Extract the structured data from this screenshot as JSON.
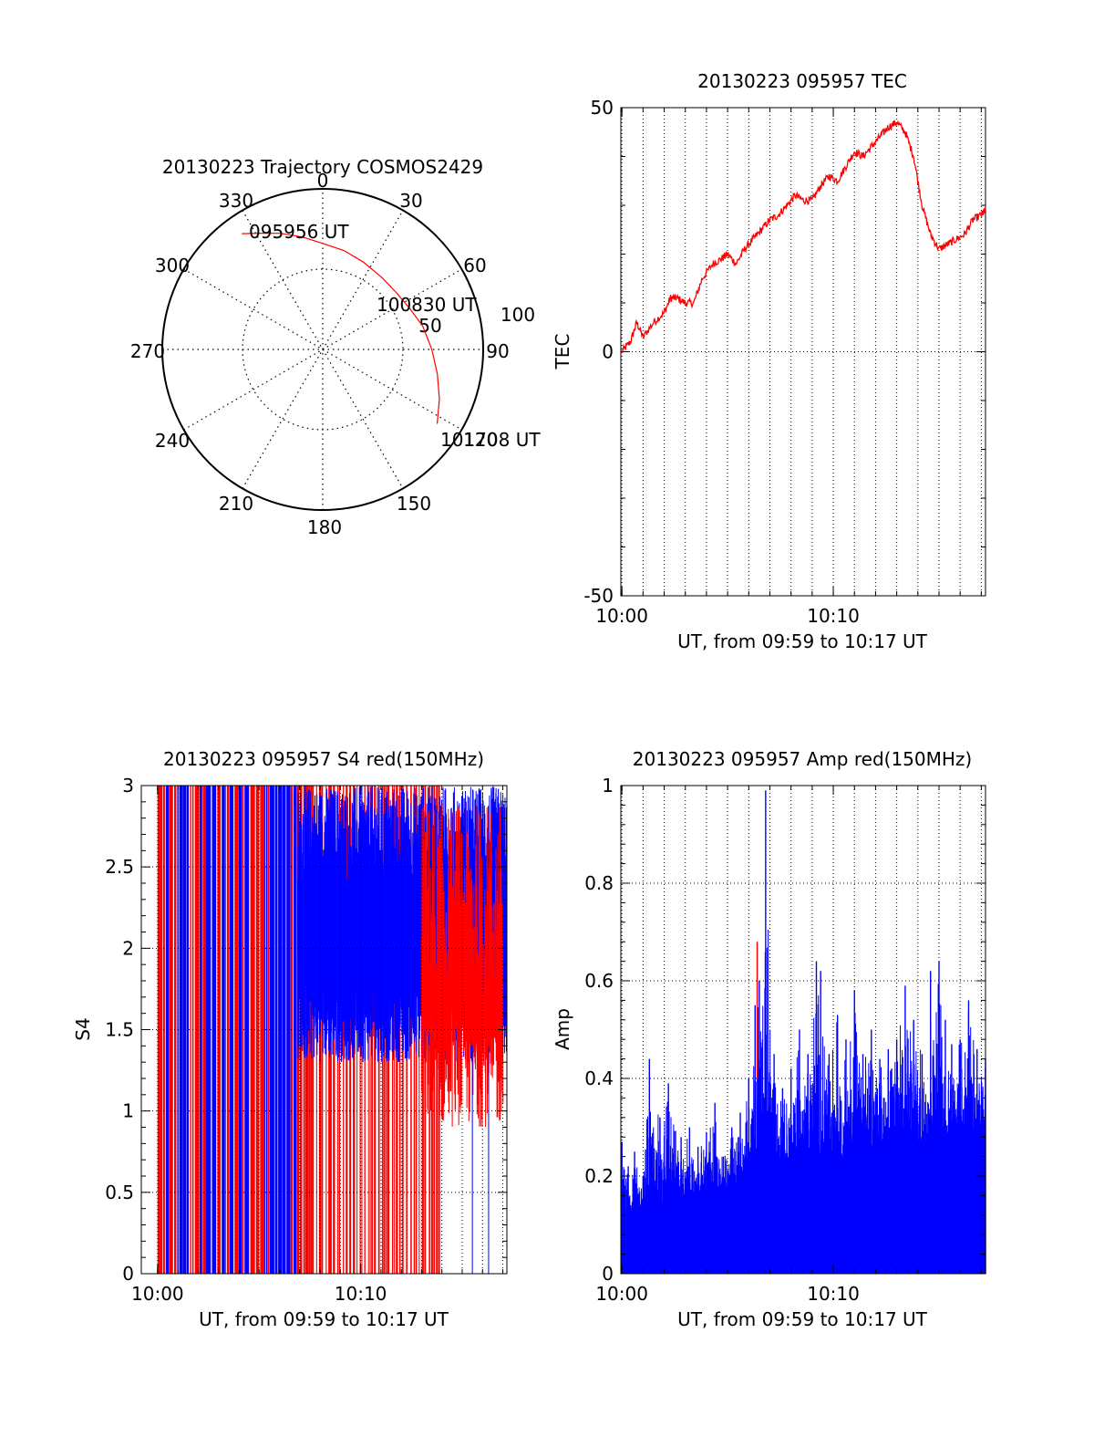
{
  "chart_data": [
    {
      "type": "polar",
      "title": "20130223 Trajectory COSMOS2429",
      "angle_labels": [
        "0",
        "30",
        "60",
        "90",
        "150",
        "180",
        "210",
        "240",
        "270",
        "300",
        "330"
      ],
      "radius_labels": [
        "50",
        "100"
      ],
      "rlim": [
        0,
        100
      ],
      "grid": true,
      "annotations": [
        "095956 UT",
        "100830 UT",
        "101708 UT",
        "120"
      ],
      "series": [
        {
          "color": "#ff0000",
          "points": [
            {
              "az": 325,
              "r": 88
            },
            {
              "az": 332,
              "r": 82
            },
            {
              "az": 340,
              "r": 77
            },
            {
              "az": 350,
              "r": 71
            },
            {
              "az": 0,
              "r": 66
            },
            {
              "az": 12,
              "r": 63
            },
            {
              "az": 25,
              "r": 60
            },
            {
              "az": 40,
              "r": 58
            },
            {
              "az": 53,
              "r": 58
            },
            {
              "az": 65,
              "r": 60
            },
            {
              "az": 77,
              "r": 64
            },
            {
              "az": 90,
              "r": 68
            },
            {
              "az": 102,
              "r": 73
            },
            {
              "az": 113,
              "r": 79
            },
            {
              "az": 123,
              "r": 85
            }
          ]
        }
      ]
    },
    {
      "type": "line",
      "title": "20130223 095957 TEC",
      "xlabel": "UT, from 09:59 to 10:17 UT",
      "ylabel": "TEC",
      "xlim": [
        599.95,
        617.2
      ],
      "ylim": [
        -50,
        50
      ],
      "x_ticks": [
        {
          "value": 600,
          "label": "10:00"
        },
        {
          "value": 610,
          "label": "10:10"
        }
      ],
      "y_ticks": [
        {
          "value": -50,
          "label": "-50"
        },
        {
          "value": 0,
          "label": "0"
        },
        {
          "value": 50,
          "label": "50"
        }
      ],
      "grid": true,
      "series": [
        {
          "color": "#ff0000",
          "x": [
            600.0,
            600.4,
            600.7,
            601.0,
            601.5,
            602.0,
            602.3,
            602.6,
            603.0,
            603.4,
            603.8,
            604.3,
            604.7,
            605.0,
            605.4,
            605.8,
            606.2,
            606.6,
            607.0,
            607.4,
            607.8,
            608.2,
            608.6,
            609.0,
            609.4,
            609.8,
            610.2,
            610.6,
            611.0,
            611.4,
            611.8,
            612.2,
            612.6,
            613.0,
            613.4,
            613.8,
            614.2,
            614.6,
            615.0,
            615.4,
            615.8,
            616.2,
            616.6,
            617.0,
            617.2
          ],
          "y": [
            0,
            2,
            6,
            3,
            6,
            8,
            11,
            11,
            10,
            10,
            15,
            18,
            19,
            20,
            18,
            21,
            23,
            25,
            27,
            28,
            30,
            32,
            31,
            31,
            34,
            36,
            35,
            38,
            41,
            40,
            42,
            44,
            46,
            47,
            45,
            40,
            30,
            24,
            21,
            22,
            23,
            24,
            27,
            28,
            29
          ]
        }
      ]
    },
    {
      "type": "line",
      "title": "20130223 095957 S4 red(150MHz)",
      "xlabel": "UT, from 09:59 to 10:17 UT",
      "ylabel": "S4",
      "xlim": [
        599.2,
        617.2
      ],
      "ylim": [
        0,
        3
      ],
      "x_ticks": [
        {
          "value": 600,
          "label": "10:00"
        },
        {
          "value": 610,
          "label": "10:10"
        }
      ],
      "y_ticks": [
        {
          "value": 0,
          "label": "0"
        },
        {
          "value": 0.5,
          "label": "0.5"
        },
        {
          "value": 1,
          "label": "1"
        },
        {
          "value": 1.5,
          "label": "1.5"
        },
        {
          "value": 2,
          "label": "2"
        },
        {
          "value": 2.5,
          "label": "2.5"
        },
        {
          "value": 3,
          "label": "3"
        }
      ],
      "grid": true,
      "series": [
        {
          "color": "#0000ff",
          "note": "dense vertical lines from 0 to 3 between 10:00 and about 10:07, then oscillating between about 1.3 and 3 until 10:17"
        },
        {
          "color": "#ff0000",
          "note": "dense vertical lines from 0 to 3 between 10:00 and about 10:14, dipping to about 0.9 near 10:14 to 10:16"
        }
      ]
    },
    {
      "type": "bar",
      "title": "20130223 095957 Amp red(150MHz)",
      "xlabel": "UT, from 09:59 to 10:17 UT",
      "ylabel": "Amp",
      "xlim": [
        599.95,
        617.2
      ],
      "ylim": [
        0,
        1
      ],
      "x_ticks": [
        {
          "value": 600,
          "label": "10:00"
        },
        {
          "value": 610,
          "label": "10:10"
        }
      ],
      "y_ticks": [
        {
          "value": 0,
          "label": "0"
        },
        {
          "value": 0.2,
          "label": "0.2"
        },
        {
          "value": 0.4,
          "label": "0.4"
        },
        {
          "value": 0.6,
          "label": "0.6"
        },
        {
          "value": 0.8,
          "label": "0.8"
        },
        {
          "value": 1,
          "label": "1"
        }
      ],
      "grid": true,
      "series": [
        {
          "color": "#0000ff",
          "x": [
            600.0,
            600.3,
            600.6,
            601.0,
            601.3,
            601.8,
            602.2,
            602.8,
            603.2,
            603.6,
            604.0,
            604.4,
            604.8,
            605.2,
            605.6,
            606.0,
            606.3,
            606.5,
            606.8,
            607.2,
            607.6,
            608.0,
            608.4,
            608.8,
            609.2,
            609.4,
            609.8,
            610.2,
            610.6,
            611.0,
            611.4,
            611.8,
            612.2,
            612.6,
            613.0,
            613.4,
            613.8,
            614.2,
            614.6,
            615.0,
            615.3,
            615.6,
            616.0,
            616.4,
            616.8,
            617.2
          ],
          "values": [
            0.27,
            0.22,
            0.25,
            0.2,
            0.44,
            0.32,
            0.39,
            0.28,
            0.3,
            0.26,
            0.29,
            0.35,
            0.24,
            0.3,
            0.33,
            0.4,
            0.55,
            0.6,
            0.99,
            0.45,
            0.38,
            0.42,
            0.5,
            0.45,
            0.64,
            0.62,
            0.45,
            0.53,
            0.48,
            0.58,
            0.45,
            0.5,
            0.44,
            0.46,
            0.48,
            0.59,
            0.52,
            0.45,
            0.62,
            0.64,
            0.52,
            0.47,
            0.48,
            0.56,
            0.46,
            0.44
          ]
        },
        {
          "color": "#ff0000",
          "x": [
            606.4
          ],
          "values": [
            0.68
          ]
        }
      ]
    }
  ]
}
